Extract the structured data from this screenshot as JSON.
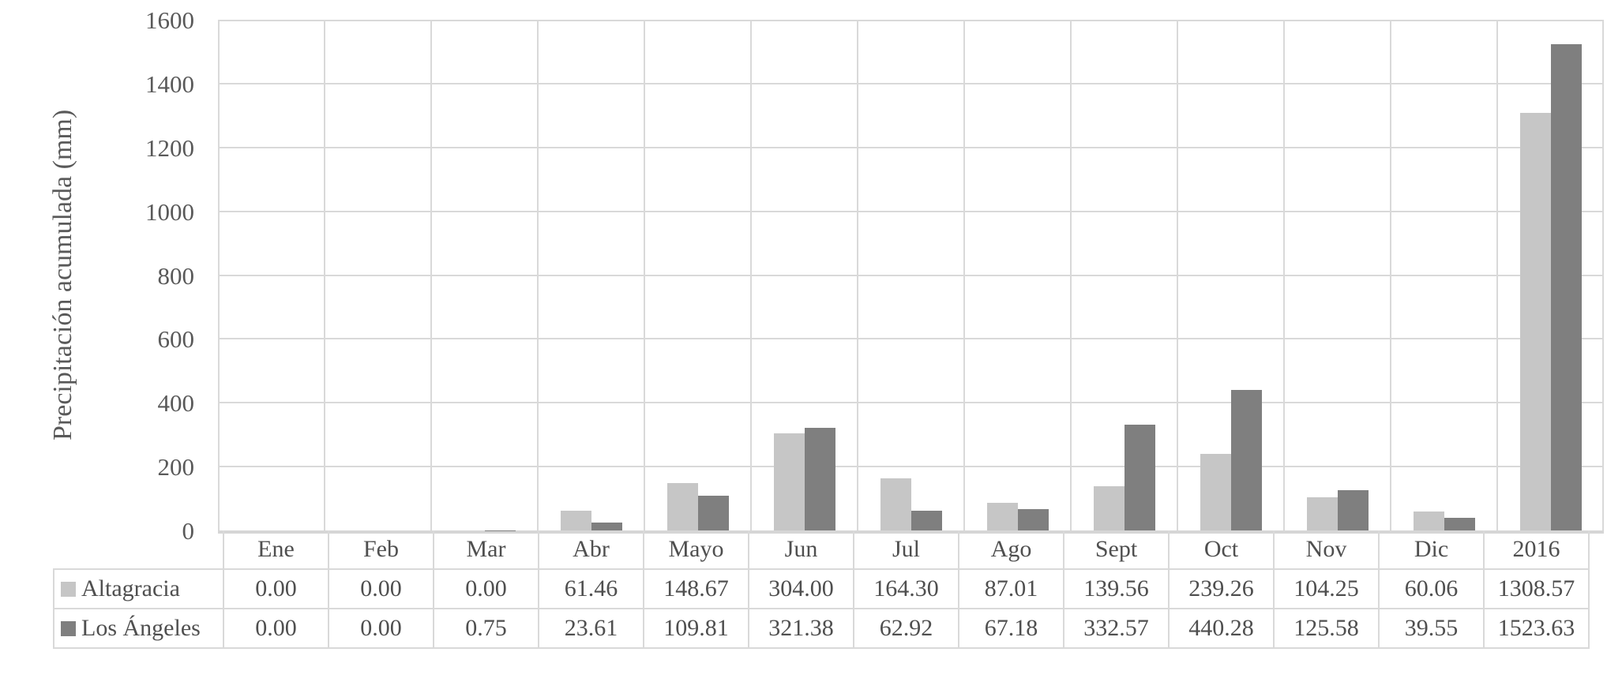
{
  "accent_colors": {
    "series_light": "#c6c6c6",
    "series_dark": "#7f7f7f",
    "gridline": "#d9d9d9",
    "axis_line": "#d6d6d6",
    "text": "#595959"
  },
  "chart_data": {
    "type": "bar",
    "title": "",
    "xlabel": "",
    "ylabel": "Precipitación acumulada (mm)",
    "categories": [
      "Ene",
      "Feb",
      "Mar",
      "Abr",
      "Mayo",
      "Jun",
      "Jul",
      "Ago",
      "Sept",
      "Oct",
      "Nov",
      "Dic",
      "2016"
    ],
    "series": [
      {
        "name": "Altagracia",
        "color": "#c6c6c6",
        "values": [
          0.0,
          0.0,
          0.0,
          61.46,
          148.67,
          304.0,
          164.3,
          87.01,
          139.56,
          239.26,
          104.25,
          60.06,
          1308.57
        ]
      },
      {
        "name": "Los Ángeles",
        "color": "#7f7f7f",
        "values": [
          0.0,
          0.0,
          0.75,
          23.61,
          109.81,
          321.38,
          62.92,
          67.18,
          332.57,
          440.28,
          125.58,
          39.55,
          1523.63
        ]
      }
    ],
    "ylim": [
      0,
      1600
    ],
    "yticks": [
      0,
      200,
      400,
      600,
      800,
      1000,
      1200,
      1400,
      1600
    ],
    "grid": true,
    "legend_position": "table-rows-left",
    "value_decimals": 2
  }
}
